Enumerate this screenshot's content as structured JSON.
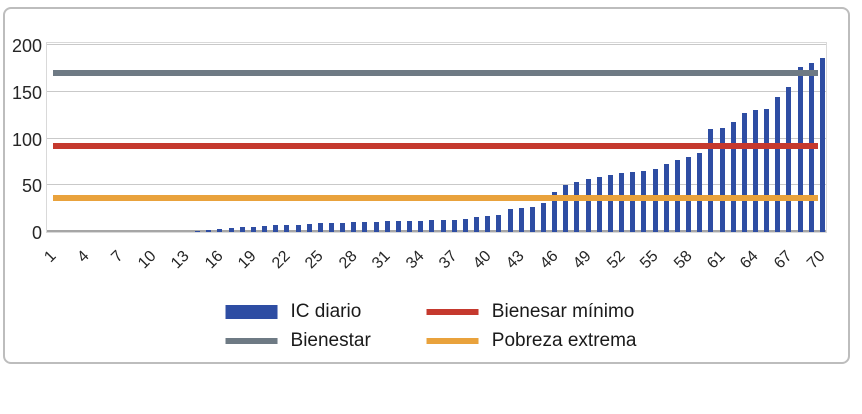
{
  "chart_data": {
    "type": "bar",
    "title": "",
    "xlabel": "",
    "ylabel": "",
    "ylim": [
      0,
      200
    ],
    "yticks": [
      0,
      50,
      100,
      150,
      200
    ],
    "grid": true,
    "legend_position": "bottom",
    "x": [
      1,
      2,
      3,
      4,
      5,
      6,
      7,
      8,
      9,
      10,
      11,
      12,
      13,
      14,
      15,
      16,
      17,
      18,
      19,
      20,
      21,
      22,
      23,
      24,
      25,
      26,
      27,
      28,
      29,
      30,
      31,
      32,
      33,
      34,
      35,
      36,
      37,
      38,
      39,
      40,
      41,
      42,
      43,
      44,
      45,
      46,
      47,
      48,
      49,
      50,
      51,
      52,
      53,
      54,
      55,
      56,
      57,
      58,
      59,
      60,
      61,
      62,
      63,
      64,
      65,
      66,
      67,
      68,
      69,
      70
    ],
    "xtick_labels": [
      "1",
      "4",
      "7",
      "10",
      "13",
      "16",
      "19",
      "22",
      "25",
      "28",
      "31",
      "34",
      "37",
      "40",
      "43",
      "46",
      "49",
      "52",
      "55",
      "58",
      "61",
      "64",
      "67",
      "70"
    ],
    "series": [
      {
        "name": "IC diario",
        "type": "bar",
        "color": "#2e4da3",
        "values": [
          0,
          0,
          0,
          0,
          0,
          0,
          0,
          0,
          0,
          0,
          0,
          0,
          0,
          1,
          2,
          3,
          4,
          5,
          5,
          6,
          7,
          7,
          8,
          9,
          10,
          10,
          10,
          11,
          11,
          11,
          12,
          12,
          12,
          12,
          13,
          13,
          13,
          14,
          16,
          17,
          18,
          25,
          26,
          27,
          31,
          43,
          50,
          54,
          57,
          59,
          61,
          63,
          64,
          65,
          67,
          73,
          77,
          80,
          84,
          110,
          111,
          118,
          127,
          130,
          132,
          144,
          155,
          177,
          181,
          186
        ]
      },
      {
        "name": "Bienestar",
        "type": "hline",
        "color": "#6e7a84",
        "value": 170
      },
      {
        "name": "Bienesar mínimo",
        "type": "hline",
        "color": "#c5392e",
        "value": 92
      },
      {
        "name": "Pobreza extrema",
        "type": "hline",
        "color": "#e9a23c",
        "value": 36
      }
    ]
  },
  "legend": {
    "items": [
      {
        "label": "IC diario",
        "swatch": "bar",
        "color": "#2e4da3"
      },
      {
        "label": "Bienesar mínimo",
        "swatch": "line",
        "color": "#c5392e"
      },
      {
        "label": "Bienestar",
        "swatch": "line",
        "color": "#6e7a84"
      },
      {
        "label": "Pobreza extrema",
        "swatch": "line",
        "color": "#e9a23c"
      }
    ]
  },
  "colors": {
    "bar_blue": "#2e4da3",
    "line_gray": "#6e7a84",
    "line_red": "#c5392e",
    "line_orange": "#e9a23c",
    "gridline": "#c9c9c9",
    "frame_border": "#bdbdbd"
  }
}
